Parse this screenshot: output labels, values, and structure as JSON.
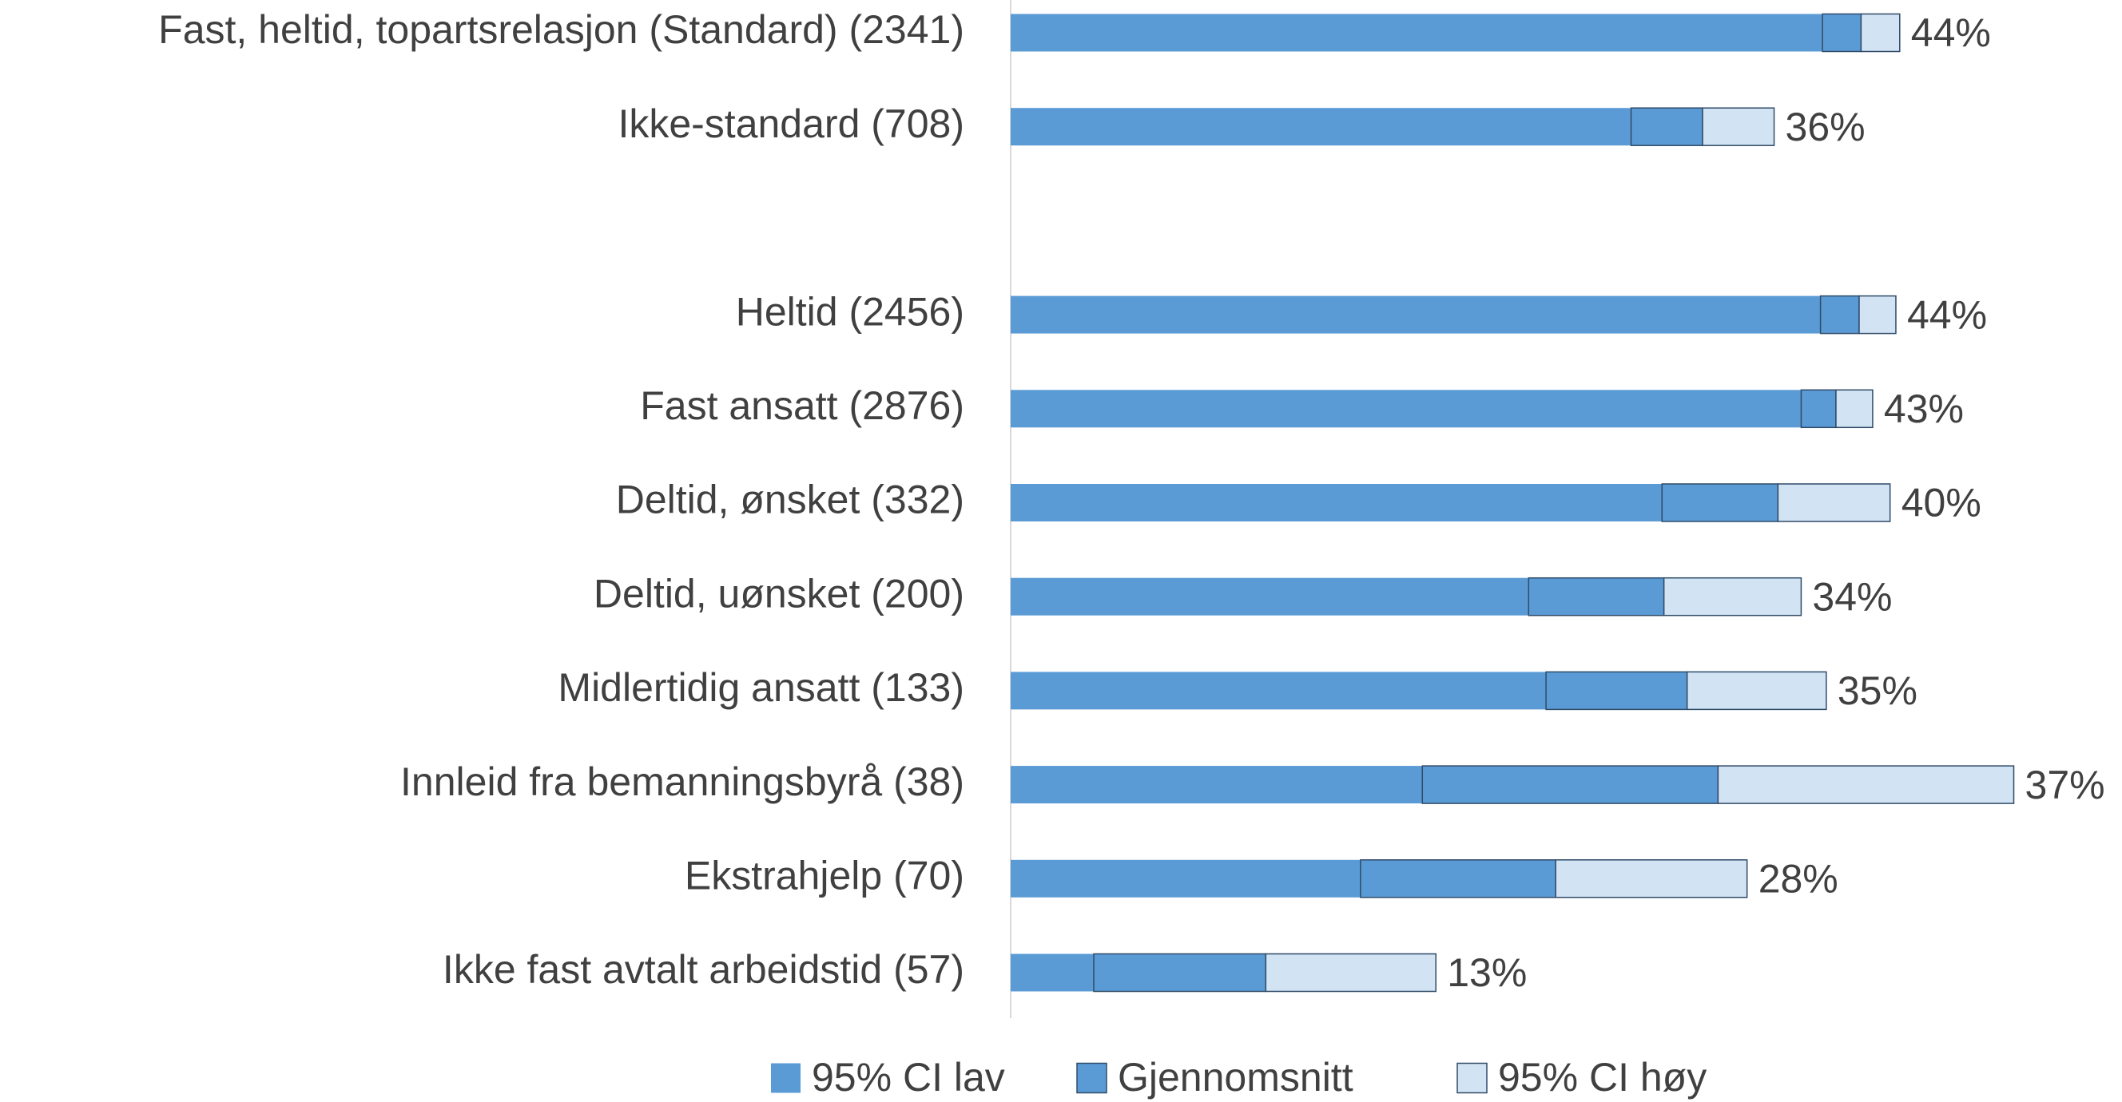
{
  "chart_data": {
    "type": "stacked-barh",
    "categories": [
      "Fast, heltid, topartsrelasjon (Standard) (2341)",
      "Ikke-standard (708)",
      null,
      "Heltid (2456)",
      "Fast ansatt (2876)",
      "Deltid, ønsket (332)",
      "Deltid, uønsket (200)",
      "Midlertidig ansatt (133)",
      "Innleid fra bemanningsbyrå (38)",
      "Ekstrahjelp (70)",
      "Ikke fast avtalt arbeidstid (57)"
    ],
    "series": [
      {
        "name": "95% CI lav",
        "color": "#5b9bd5",
        "values": [
          42.0,
          32.1,
          null,
          41.9,
          40.9,
          33.7,
          26.8,
          27.7,
          21.3,
          18.1,
          4.3
        ]
      },
      {
        "name": "Gjennomsnitt",
        "color": "#5b9bd5",
        "values": [
          2.0,
          3.7,
          null,
          2.0,
          1.8,
          6.0,
          7.0,
          7.3,
          15.3,
          10.1,
          8.9
        ]
      },
      {
        "name": "95% CI høy",
        "color": "#d2e3f3",
        "values": [
          2.0,
          3.7,
          null,
          1.9,
          1.9,
          5.8,
          7.1,
          7.2,
          15.3,
          9.9,
          8.8
        ]
      }
    ],
    "mean_labels": [
      "44%",
      "36%",
      null,
      "44%",
      "43%",
      "40%",
      "34%",
      "35%",
      "37%",
      "28%",
      "13%"
    ],
    "xlim": [
      0,
      57.5
    ]
  }
}
